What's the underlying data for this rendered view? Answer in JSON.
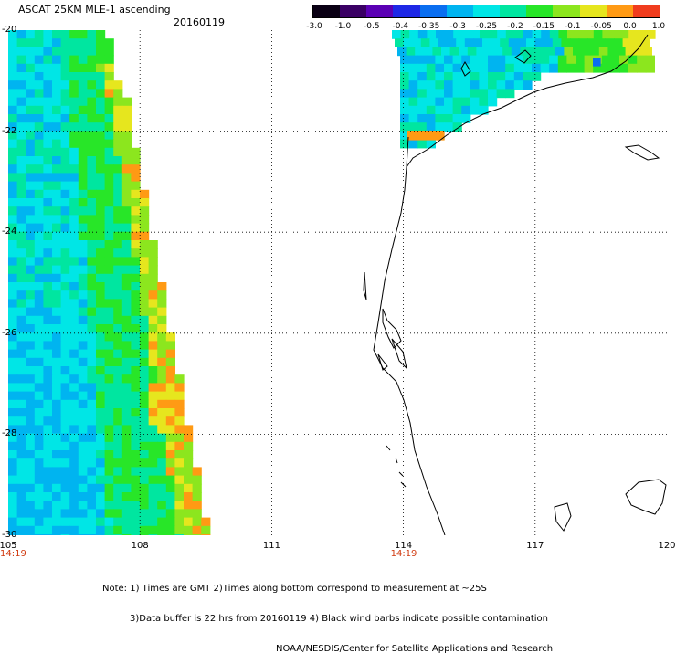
{
  "header": {
    "title": "ASCAT 25KM MLE-1 ascending",
    "date": "20160119"
  },
  "colorbar": {
    "labels": [
      "-3.0",
      "-1.0",
      "-0.5",
      "-0.4",
      "-0.35",
      "-0.3",
      "-0.25",
      "-0.2",
      "-0.15",
      "-0.1",
      "-0.05",
      "0.0",
      "1.0"
    ],
    "colors": [
      "#0a0014",
      "#3a0064",
      "#5a00b4",
      "#1e28e6",
      "#0a6ef0",
      "#00b4f0",
      "#00e6e6",
      "#00e6a0",
      "#28e628",
      "#8ce61e",
      "#e6e61e",
      "#ff9a14",
      "#f03c1e"
    ]
  },
  "axes": {
    "lat_labels": [
      "-20",
      "-22",
      "-24",
      "-26",
      "-28",
      "-30"
    ],
    "lon_labels": [
      "105",
      "108",
      "111",
      "114",
      "117",
      "120"
    ],
    "lat_range": [
      -30,
      -20
    ],
    "lon_range": [
      105,
      120
    ],
    "grid": true
  },
  "times": [
    {
      "label": "14:19",
      "lon": 105
    },
    {
      "label": "14:19",
      "lon": 114
    }
  ],
  "notes": [
    "Note: 1) Times are GMT 2)Times along bottom correspond to measurement at ~25S",
    "3)Data buffer is 22 hrs from 20160119 4) Black wind barbs indicate possible contamination",
    "NOAA/NESDIS/Center for Satellite Applications and Research"
  ]
}
